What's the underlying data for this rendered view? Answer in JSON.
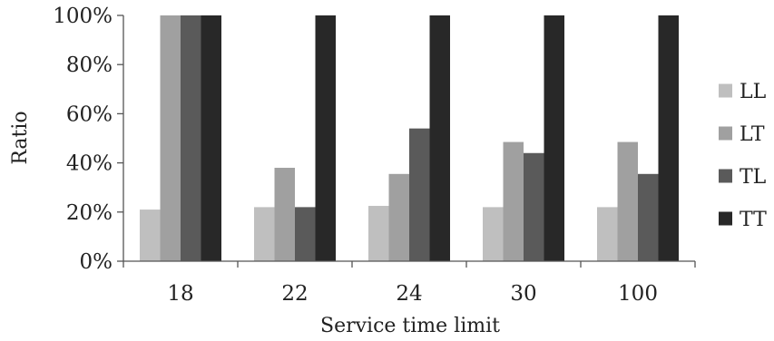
{
  "chart_data": {
    "type": "bar",
    "categories": [
      "18",
      "22",
      "24",
      "30",
      "100"
    ],
    "series": [
      {
        "name": "LL",
        "values": [
          21,
          22,
          22.5,
          22,
          22
        ],
        "color": "#bfbfbf"
      },
      {
        "name": "LT",
        "values": [
          100,
          38,
          35.5,
          48.5,
          48.5
        ],
        "color": "#a0a0a0"
      },
      {
        "name": "TL",
        "values": [
          100,
          22,
          54,
          44,
          35.5
        ],
        "color": "#5a5a5a"
      },
      {
        "name": "TT",
        "values": [
          100,
          100,
          100,
          100,
          100
        ],
        "color": "#282828"
      }
    ],
    "yticks": [
      "0%",
      "20%",
      "40%",
      "60%",
      "80%",
      "100%"
    ],
    "ylim": [
      0,
      100
    ],
    "xlabel": "Service time limit",
    "ylabel": "Ratio",
    "legend_position": "right",
    "grid": false
  }
}
